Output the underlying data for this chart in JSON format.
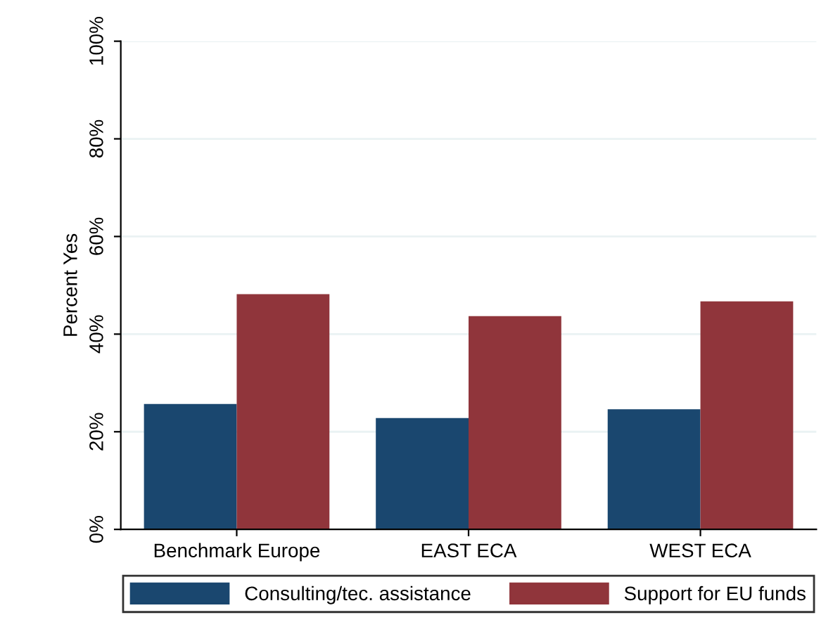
{
  "chart_data": {
    "type": "bar",
    "ylabel": "Percent Yes",
    "categories": [
      "Benchmark Europe",
      "EAST ECA",
      "WEST ECA"
    ],
    "series": [
      {
        "name": "Consulting/tec. assistance",
        "color": "#1a476f",
        "values": [
          25.7,
          22.8,
          24.6
        ]
      },
      {
        "name": "Support for EU funds",
        "color": "#90353b",
        "values": [
          48.2,
          43.7,
          46.7
        ]
      }
    ],
    "ylim": [
      0,
      100
    ],
    "yticks": [
      {
        "value": 0,
        "label": "0%"
      },
      {
        "value": 20,
        "label": "20%"
      },
      {
        "value": 40,
        "label": "40%"
      },
      {
        "value": 60,
        "label": "60%"
      },
      {
        "value": 80,
        "label": "80%"
      },
      {
        "value": 100,
        "label": "100%"
      }
    ],
    "grid": "y",
    "legend": "bottom"
  }
}
